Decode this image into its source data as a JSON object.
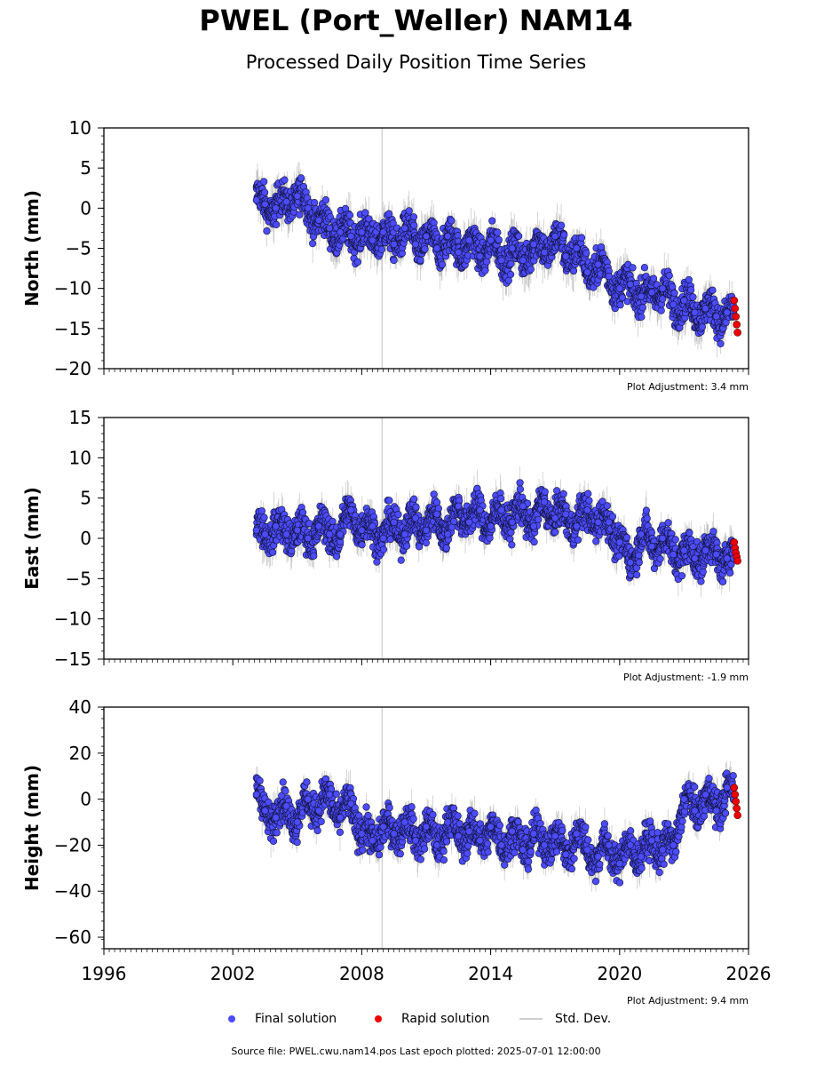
{
  "header": {
    "title": "PWEL (Port_Weller) NAM14",
    "subtitle": "Processed Daily Position Time Series"
  },
  "legend": {
    "final": "Final solution",
    "rapid": "Rapid solution",
    "std": "Std. Dev."
  },
  "footer": {
    "source": "Source file: PWEL.cwu.nam14.pos  Last epoch plotted: 2025-07-01 12:00:00"
  },
  "colors": {
    "final": "#4b4bff",
    "rapid": "#ee0000",
    "std": "#a0a0a0",
    "vline": "#d3d3d3"
  },
  "chart_data": [
    {
      "type": "scatter",
      "ylabel": "North (mm)",
      "xlim": [
        1996,
        2026
      ],
      "ylim": [
        -20,
        10
      ],
      "yticks": [
        -20,
        -15,
        -10,
        -5,
        0,
        5,
        10
      ],
      "xticks": [
        1996,
        2002,
        2008,
        2014,
        2020,
        2026
      ],
      "adjustment": "Plot Adjustment: 3.4 mm",
      "vertical_line_x": 2008.95,
      "series": [
        {
          "name": "Final solution",
          "x": [
            2003.1,
            2003.5,
            2004.0,
            2004.5,
            2005.0,
            2005.5,
            2006.0,
            2006.5,
            2007.0,
            2007.5,
            2008.0,
            2008.5,
            2009.0,
            2009.5,
            2010.0,
            2010.5,
            2011.0,
            2011.5,
            2012.0,
            2012.5,
            2013.0,
            2013.5,
            2014.0,
            2014.5,
            2015.0,
            2015.5,
            2016.0,
            2016.5,
            2017.0,
            2017.5,
            2018.0,
            2018.5,
            2019.0,
            2019.5,
            2020.0,
            2020.5,
            2021.0,
            2021.5,
            2022.0,
            2022.5,
            2023.0,
            2023.5,
            2024.0,
            2024.5,
            2025.0,
            2025.3
          ],
          "y": [
            1.0,
            0.5,
            0.0,
            0.8,
            1.5,
            0.0,
            -1.5,
            -2.5,
            -3.0,
            -3.5,
            -3.0,
            -4.0,
            -3.0,
            -4.5,
            -2.5,
            -4.5,
            -3.5,
            -5.0,
            -3.5,
            -5.5,
            -4.0,
            -6.0,
            -4.0,
            -6.5,
            -5.0,
            -6.5,
            -4.5,
            -5.5,
            -3.5,
            -6.0,
            -5.0,
            -8.0,
            -7.0,
            -8.5,
            -10.0,
            -9.5,
            -11.0,
            -10.5,
            -10.0,
            -12.0,
            -11.5,
            -13.0,
            -12.5,
            -13.5,
            -13.0,
            -13.5
          ],
          "yerr": 2.0
        },
        {
          "name": "Rapid solution",
          "x": [
            2025.33,
            2025.37,
            2025.41,
            2025.45,
            2025.49
          ],
          "y": [
            -11.5,
            -12.5,
            -13.5,
            -14.5,
            -15.5
          ]
        }
      ]
    },
    {
      "type": "scatter",
      "ylabel": "East (mm)",
      "xlim": [
        1996,
        2026
      ],
      "ylim": [
        -15,
        15
      ],
      "yticks": [
        -15,
        -10,
        -5,
        0,
        5,
        10,
        15
      ],
      "xticks": [
        1996,
        2002,
        2008,
        2014,
        2020,
        2026
      ],
      "adjustment": "Plot Adjustment: -1.9 mm",
      "vertical_line_x": 2008.95,
      "series": [
        {
          "name": "Final solution",
          "x": [
            2003.1,
            2003.5,
            2004.0,
            2004.5,
            2005.0,
            2005.5,
            2006.0,
            2006.5,
            2007.0,
            2007.5,
            2008.0,
            2008.5,
            2009.0,
            2009.5,
            2010.0,
            2010.5,
            2011.0,
            2011.5,
            2012.0,
            2012.5,
            2013.0,
            2013.5,
            2014.0,
            2014.5,
            2015.0,
            2015.5,
            2016.0,
            2016.5,
            2017.0,
            2017.5,
            2018.0,
            2018.5,
            2019.0,
            2019.5,
            2020.0,
            2020.5,
            2021.0,
            2021.5,
            2022.0,
            2022.5,
            2023.0,
            2023.5,
            2024.0,
            2024.5,
            2025.0,
            2025.3
          ],
          "y": [
            1.0,
            0.5,
            1.5,
            0.5,
            1.0,
            0.0,
            1.5,
            0.5,
            0.5,
            3.5,
            1.0,
            1.5,
            0.0,
            2.0,
            0.5,
            2.5,
            1.0,
            3.0,
            0.5,
            4.0,
            2.0,
            3.5,
            1.5,
            3.5,
            2.0,
            4.0,
            1.5,
            4.5,
            2.5,
            3.0,
            1.5,
            3.5,
            2.0,
            2.0,
            -0.5,
            -3.0,
            0.5,
            -1.0,
            0.0,
            -2.0,
            -1.5,
            -2.5,
            -1.5,
            -2.0,
            -2.5,
            -2.5
          ],
          "yerr": 1.8
        },
        {
          "name": "Rapid solution",
          "x": [
            2025.33,
            2025.37,
            2025.41,
            2025.45,
            2025.49
          ],
          "y": [
            -0.5,
            -1.2,
            -1.8,
            -2.3,
            -2.8
          ]
        }
      ]
    },
    {
      "type": "scatter",
      "ylabel": "Height (mm)",
      "xlim": [
        1996,
        2026
      ],
      "ylim": [
        -65,
        40
      ],
      "yticks": [
        -60,
        -40,
        -20,
        0,
        20,
        40
      ],
      "xticks": [
        1996,
        2002,
        2008,
        2014,
        2020,
        2026
      ],
      "adjustment": "Plot Adjustment: 9.4 mm",
      "vertical_line_x": 2008.95,
      "series": [
        {
          "name": "Final solution",
          "x": [
            2003.1,
            2003.5,
            2004.0,
            2004.5,
            2005.0,
            2005.5,
            2006.0,
            2006.5,
            2007.0,
            2007.5,
            2008.0,
            2008.5,
            2009.0,
            2009.5,
            2010.0,
            2010.5,
            2011.0,
            2011.5,
            2012.0,
            2012.5,
            2013.0,
            2013.5,
            2014.0,
            2014.5,
            2015.0,
            2015.5,
            2016.0,
            2016.5,
            2017.0,
            2017.5,
            2018.0,
            2018.5,
            2019.0,
            2019.5,
            2020.0,
            2020.5,
            2021.0,
            2021.5,
            2022.0,
            2022.5,
            2023.0,
            2023.5,
            2024.0,
            2024.5,
            2025.0,
            2025.3
          ],
          "y": [
            2.0,
            -5.0,
            -8.0,
            -3.0,
            -10.0,
            0.0,
            -5.0,
            2.0,
            -8.0,
            -2.0,
            -15.0,
            -18.0,
            -12.0,
            -15.0,
            -10.0,
            -18.0,
            -12.0,
            -20.0,
            -10.0,
            -16.0,
            -14.0,
            -18.0,
            -12.0,
            -20.0,
            -14.0,
            -22.0,
            -15.0,
            -20.0,
            -16.0,
            -24.0,
            -15.0,
            -22.0,
            -25.0,
            -20.0,
            -28.0,
            -20.0,
            -25.0,
            -18.0,
            -22.0,
            -20.0,
            0.0,
            -5.0,
            2.0,
            -5.0,
            5.0,
            0.0
          ],
          "yerr": 6.0
        },
        {
          "name": "Rapid solution",
          "x": [
            2025.33,
            2025.37,
            2025.41,
            2025.45,
            2025.49
          ],
          "y": [
            5.0,
            2.0,
            -1.0,
            -4.0,
            -7.0
          ]
        }
      ]
    }
  ]
}
